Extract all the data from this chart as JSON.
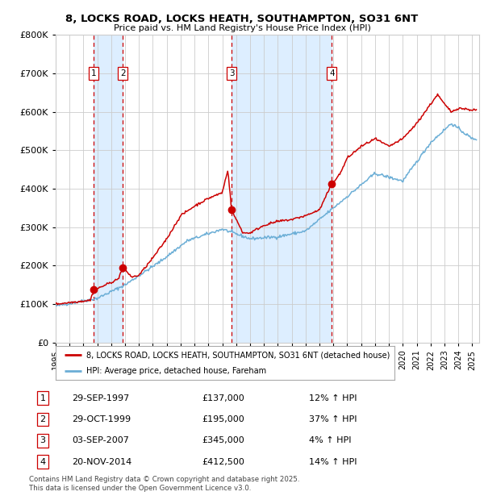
{
  "title": "8, LOCKS ROAD, LOCKS HEATH, SOUTHAMPTON, SO31 6NT",
  "subtitle": "Price paid vs. HM Land Registry's House Price Index (HPI)",
  "legend_line1": "8, LOCKS ROAD, LOCKS HEATH, SOUTHAMPTON, SO31 6NT (detached house)",
  "legend_line2": "HPI: Average price, detached house, Fareham",
  "footer": "Contains HM Land Registry data © Crown copyright and database right 2025.\nThis data is licensed under the Open Government Licence v3.0.",
  "transactions": [
    {
      "num": 1,
      "date": "29-SEP-1997",
      "price": 137000,
      "pct": "12%",
      "direction": "↑",
      "year": 1997.75
    },
    {
      "num": 2,
      "date": "29-OCT-1999",
      "price": 195000,
      "pct": "37%",
      "direction": "↑",
      "year": 1999.83
    },
    {
      "num": 3,
      "date": "03-SEP-2007",
      "price": 345000,
      "pct": "4%",
      "direction": "↑",
      "year": 2007.67
    },
    {
      "num": 4,
      "date": "20-NOV-2014",
      "price": 412500,
      "pct": "14%",
      "direction": "↑",
      "year": 2014.89
    }
  ],
  "hpi_color": "#6baed6",
  "price_color": "#cc0000",
  "transaction_color": "#cc0000",
  "dashed_line_color": "#cc0000",
  "shade_color": "#ddeeff",
  "ylim": [
    0,
    800000
  ],
  "yticks": [
    0,
    100000,
    200000,
    300000,
    400000,
    500000,
    600000,
    700000,
    800000
  ],
  "xlim_start": 1995.0,
  "xlim_end": 2025.5,
  "background_color": "#ffffff",
  "grid_color": "#cccccc",
  "hpi_anchors_x": [
    1995.0,
    1998.0,
    2000.0,
    2002.5,
    2004.5,
    2007.0,
    2009.0,
    2011.0,
    2013.0,
    2015.5,
    2018.0,
    2020.0,
    2022.0,
    2023.5,
    2025.0
  ],
  "hpi_anchors_y": [
    95000,
    115000,
    150000,
    210000,
    265000,
    295000,
    270000,
    275000,
    290000,
    365000,
    440000,
    420000,
    520000,
    570000,
    530000
  ],
  "price_anchors_x": [
    1995.0,
    1997.5,
    1997.75,
    1998.0,
    1999.5,
    1999.83,
    2000.5,
    2001.0,
    2002.0,
    2003.0,
    2004.0,
    2005.0,
    2006.0,
    2007.0,
    2007.4,
    2007.67,
    2008.0,
    2008.5,
    2009.0,
    2010.0,
    2011.0,
    2012.0,
    2013.0,
    2014.0,
    2014.89,
    2015.5,
    2016.0,
    2017.0,
    2018.0,
    2019.0,
    2020.0,
    2021.0,
    2022.0,
    2022.5,
    2023.0,
    2023.5,
    2024.0,
    2025.0
  ],
  "price_anchors_y": [
    100000,
    110000,
    137000,
    140000,
    165000,
    195000,
    170000,
    175000,
    220000,
    270000,
    330000,
    355000,
    375000,
    390000,
    450000,
    345000,
    320000,
    285000,
    285000,
    305000,
    315000,
    320000,
    330000,
    345000,
    412500,
    440000,
    480000,
    510000,
    530000,
    510000,
    530000,
    570000,
    620000,
    645000,
    620000,
    600000,
    610000,
    605000
  ]
}
